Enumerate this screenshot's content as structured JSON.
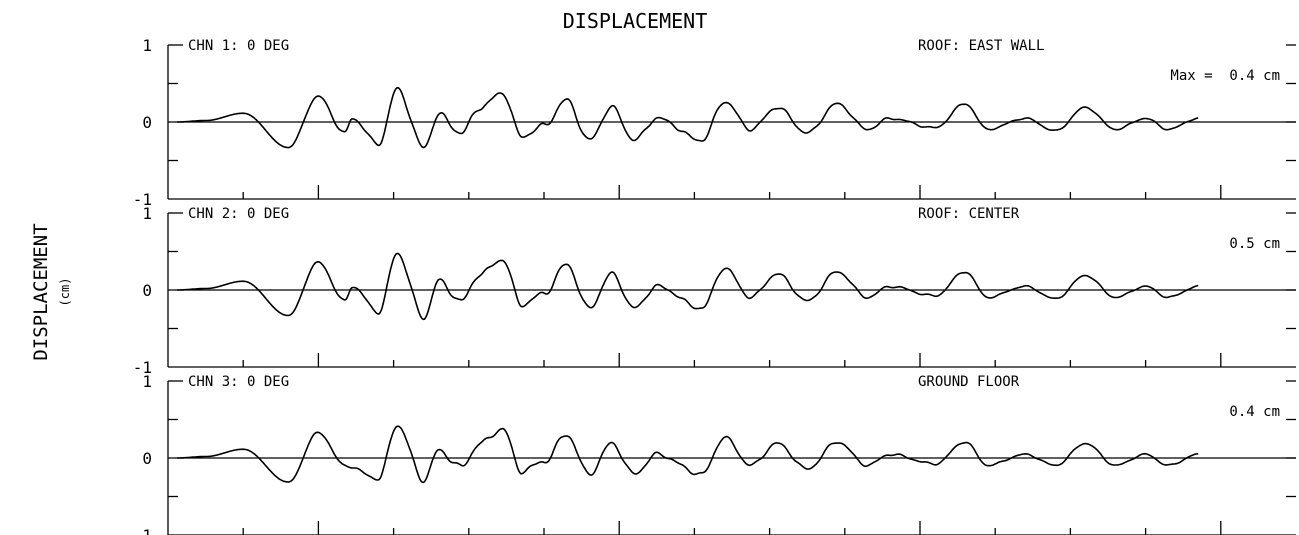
{
  "chart_data": {
    "type": "line",
    "title": "DISPLACEMENT",
    "ylabel": "DISPLACEMENT",
    "yunit": "(cm)",
    "ylim": [
      -1,
      1
    ],
    "yticks": [
      "1",
      "0",
      "-1"
    ],
    "panels": [
      {
        "channel": "CHN 1: 0 DEG",
        "location": "ROOF: EAST WALL",
        "max_label": "Max =  0.4 cm",
        "max": 0.4,
        "peaks": [
          [
            0.12,
            0.0
          ],
          [
            0.5,
            0.02
          ],
          [
            1.0,
            0.12
          ],
          [
            1.6,
            -0.35
          ],
          [
            2.0,
            0.35
          ],
          [
            2.35,
            -0.15
          ],
          [
            2.45,
            0.05
          ],
          [
            2.8,
            -0.3
          ],
          [
            3.05,
            0.45
          ],
          [
            3.4,
            -0.35
          ],
          [
            3.6,
            0.1
          ],
          [
            3.9,
            -0.15
          ],
          [
            4.15,
            0.2
          ],
          [
            4.45,
            0.4
          ],
          [
            4.7,
            -0.2
          ],
          [
            5.0,
            -0.05
          ],
          [
            5.3,
            0.3
          ],
          [
            5.6,
            -0.25
          ],
          [
            5.9,
            0.2
          ],
          [
            6.2,
            -0.25
          ],
          [
            6.5,
            0.05
          ],
          [
            7.1,
            -0.25
          ],
          [
            7.4,
            0.28
          ],
          [
            7.75,
            -0.1
          ],
          [
            8.1,
            0.2
          ],
          [
            8.5,
            -0.15
          ],
          [
            8.9,
            0.25
          ],
          [
            9.3,
            -0.1
          ],
          [
            9.6,
            0.05
          ],
          [
            10.2,
            -0.08
          ],
          [
            10.6,
            0.25
          ],
          [
            10.9,
            -0.1
          ],
          [
            11.4,
            0.05
          ],
          [
            11.8,
            -0.12
          ],
          [
            12.2,
            0.2
          ],
          [
            12.6,
            -0.1
          ],
          [
            13.0,
            0.05
          ],
          [
            13.3,
            -0.1
          ],
          [
            13.7,
            0.05
          ]
        ]
      },
      {
        "channel": "CHN 2: 0 DEG",
        "location": "ROOF: CENTER",
        "max_label": "0.5 cm",
        "max": 0.5,
        "peaks": [
          [
            0.12,
            0.0
          ],
          [
            0.5,
            0.02
          ],
          [
            1.0,
            0.12
          ],
          [
            1.6,
            -0.35
          ],
          [
            2.0,
            0.38
          ],
          [
            2.35,
            -0.15
          ],
          [
            2.45,
            0.05
          ],
          [
            2.8,
            -0.3
          ],
          [
            3.05,
            0.5
          ],
          [
            3.4,
            -0.38
          ],
          [
            3.6,
            0.12
          ],
          [
            3.9,
            -0.15
          ],
          [
            4.15,
            0.22
          ],
          [
            4.45,
            0.42
          ],
          [
            4.7,
            -0.2
          ],
          [
            5.0,
            -0.05
          ],
          [
            5.3,
            0.35
          ],
          [
            5.6,
            -0.25
          ],
          [
            5.9,
            0.22
          ],
          [
            6.2,
            -0.25
          ],
          [
            6.5,
            0.05
          ],
          [
            7.1,
            -0.25
          ],
          [
            7.4,
            0.3
          ],
          [
            7.75,
            -0.1
          ],
          [
            8.1,
            0.22
          ],
          [
            8.5,
            -0.15
          ],
          [
            8.9,
            0.25
          ],
          [
            9.3,
            -0.1
          ],
          [
            9.6,
            0.05
          ],
          [
            10.2,
            -0.08
          ],
          [
            10.6,
            0.25
          ],
          [
            10.9,
            -0.1
          ],
          [
            11.4,
            0.05
          ],
          [
            11.8,
            -0.12
          ],
          [
            12.2,
            0.2
          ],
          [
            12.6,
            -0.1
          ],
          [
            13.0,
            0.05
          ],
          [
            13.3,
            -0.1
          ],
          [
            13.7,
            0.05
          ]
        ]
      },
      {
        "channel": "CHN 3: 0 DEG",
        "location": "GROUND FLOOR",
        "max_label": "0.4 cm",
        "max": 0.4,
        "peaks": [
          [
            0.12,
            0.0
          ],
          [
            0.5,
            0.02
          ],
          [
            1.0,
            0.12
          ],
          [
            1.6,
            -0.33
          ],
          [
            2.0,
            0.35
          ],
          [
            2.35,
            -0.1
          ],
          [
            2.8,
            -0.28
          ],
          [
            3.05,
            0.45
          ],
          [
            3.4,
            -0.3
          ],
          [
            3.6,
            0.1
          ],
          [
            3.9,
            -0.12
          ],
          [
            4.15,
            0.2
          ],
          [
            4.45,
            0.4
          ],
          [
            4.7,
            -0.18
          ],
          [
            5.0,
            -0.05
          ],
          [
            5.3,
            0.32
          ],
          [
            5.6,
            -0.22
          ],
          [
            5.9,
            0.2
          ],
          [
            6.2,
            -0.22
          ],
          [
            6.5,
            0.05
          ],
          [
            7.1,
            -0.22
          ],
          [
            7.4,
            0.28
          ],
          [
            7.75,
            -0.1
          ],
          [
            8.1,
            0.2
          ],
          [
            8.5,
            -0.15
          ],
          [
            8.9,
            0.22
          ],
          [
            9.3,
            -0.1
          ],
          [
            9.6,
            0.05
          ],
          [
            10.2,
            -0.08
          ],
          [
            10.6,
            0.22
          ],
          [
            10.9,
            -0.1
          ],
          [
            11.4,
            0.05
          ],
          [
            11.8,
            -0.1
          ],
          [
            12.2,
            0.2
          ],
          [
            12.6,
            -0.1
          ],
          [
            13.0,
            0.05
          ],
          [
            13.3,
            -0.1
          ],
          [
            13.7,
            0.05
          ]
        ]
      }
    ]
  }
}
